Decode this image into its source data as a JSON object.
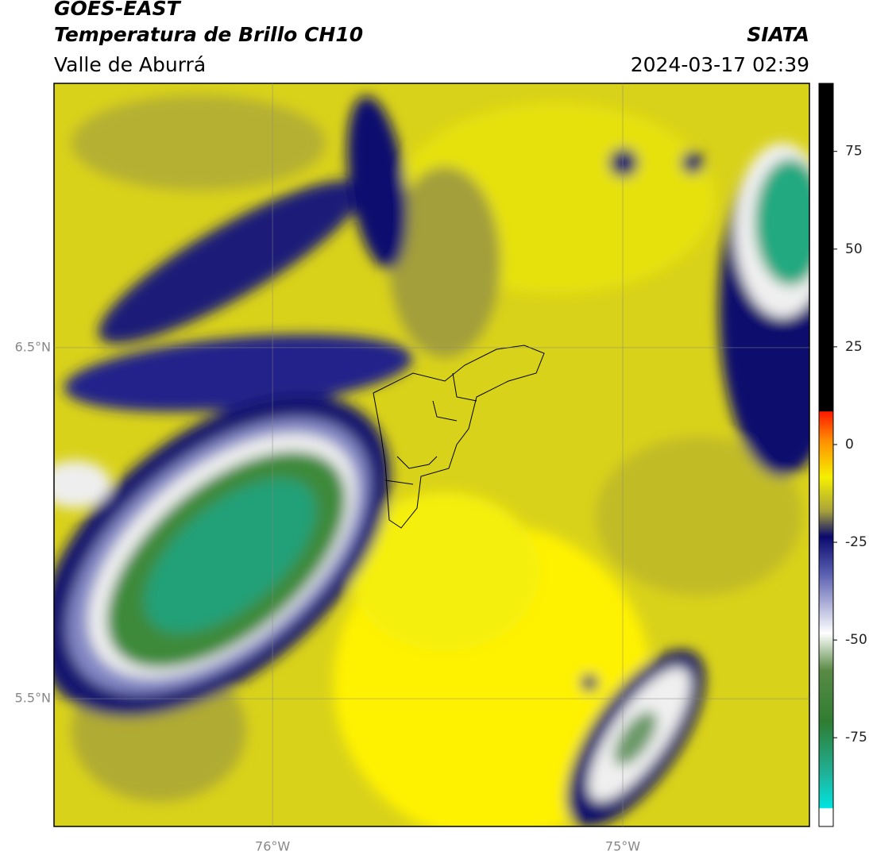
{
  "header": {
    "satellite": "GOES-EAST",
    "product": "Temperatura de Brillo CH10",
    "region": "Valle de Aburrá",
    "source": "SIATA",
    "datetime": "2024-03-17 02:39"
  },
  "map": {
    "lat_lim": [
      5.136,
      7.253
    ],
    "lon_lim": [
      -76.624,
      -74.467
    ],
    "lat_ticks": [
      {
        "value": 6.5,
        "label": "6.5°N"
      },
      {
        "value": 5.5,
        "label": "5.5°N"
      }
    ],
    "lon_ticks": [
      {
        "value": -76,
        "label": "76°W"
      },
      {
        "value": -75,
        "label": "75°W"
      }
    ]
  },
  "colorbar": {
    "lim": [
      -97.7,
      92.4
    ],
    "ticks": [
      75,
      50,
      25,
      0,
      -25,
      -50,
      -75
    ]
  }
}
